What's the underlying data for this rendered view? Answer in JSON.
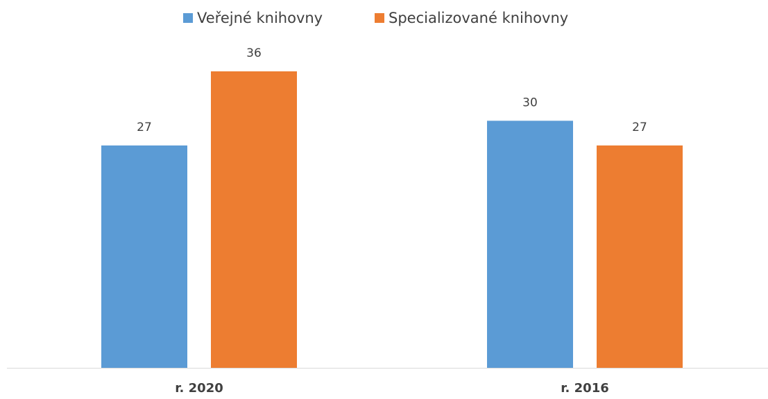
{
  "chart_data": {
    "type": "bar",
    "categories": [
      "r. 2020",
      "r. 2016"
    ],
    "series": [
      {
        "name": "Veřejné knihovny",
        "color": "#5b9bd5",
        "values": [
          27,
          30
        ]
      },
      {
        "name": "Specializované knihovny",
        "color": "#ed7d31",
        "values": [
          36,
          27
        ]
      }
    ],
    "ylim": [
      0,
      36
    ],
    "legend": "top"
  }
}
